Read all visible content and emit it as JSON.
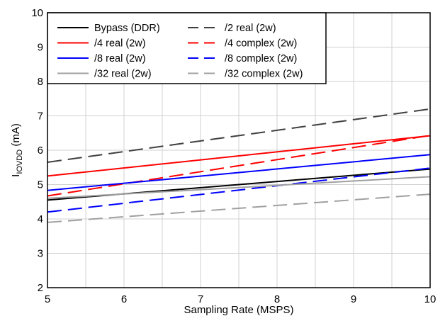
{
  "chart_data": {
    "type": "line",
    "xlabel": "Sampling Rate (MSPS)",
    "ylabel_main": "I",
    "ylabel_sub": "IOVDD",
    "ylabel_unit": " (mA)",
    "xlim": [
      5,
      10
    ],
    "ylim": [
      2,
      10
    ],
    "x_ticks": [
      "5",
      "6",
      "7",
      "8",
      "9",
      "10"
    ],
    "y_ticks": [
      "2",
      "3",
      "4",
      "5",
      "6",
      "7",
      "8",
      "9",
      "10"
    ],
    "grid": true,
    "legend_position": "top-left",
    "series": [
      {
        "name": "Bypass (DDR)",
        "color": "#000000",
        "dash": "solid",
        "x": [
          5,
          10
        ],
        "y": [
          4.55,
          5.45
        ]
      },
      {
        "name": "/2 real (2w)",
        "color": "#404040",
        "dash": "dashed",
        "x": [
          5,
          10
        ],
        "y": [
          5.65,
          7.2
        ]
      },
      {
        "name": "/4 real (2w)",
        "color": "#ff0000",
        "dash": "solid",
        "x": [
          5,
          10
        ],
        "y": [
          5.25,
          6.42
        ]
      },
      {
        "name": "/4 complex (2w)",
        "color": "#ff0000",
        "dash": "dashed",
        "x": [
          5,
          10
        ],
        "y": [
          4.67,
          6.43
        ]
      },
      {
        "name": "/8 real (2w)",
        "color": "#0000ff",
        "dash": "solid",
        "x": [
          5,
          10
        ],
        "y": [
          4.83,
          5.87
        ]
      },
      {
        "name": "/8 complex (2w)",
        "color": "#0000ff",
        "dash": "dashed",
        "x": [
          5,
          10
        ],
        "y": [
          4.2,
          5.48
        ]
      },
      {
        "name": "/32 real (2w)",
        "color": "#a0a0a0",
        "dash": "solid",
        "x": [
          5,
          10
        ],
        "y": [
          4.6,
          5.23
        ]
      },
      {
        "name": "/32 complex (2w)",
        "color": "#a0a0a0",
        "dash": "dashed",
        "x": [
          5,
          10
        ],
        "y": [
          3.9,
          4.72
        ]
      }
    ]
  }
}
